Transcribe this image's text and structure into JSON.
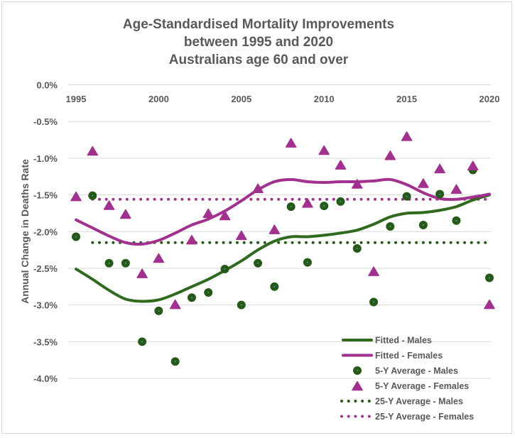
{
  "chart_data": {
    "type": "line",
    "title": [
      "Age-Standardised Mortality Improvements",
      "between 1995 and 2020",
      "Australians age 60 and over"
    ],
    "ylabel": "Annual Change in Deaths Rate",
    "xlabel": "",
    "xlim": [
      1995,
      2020
    ],
    "ylim": [
      -4.0,
      0.0
    ],
    "x_ticks": [
      "1995",
      "2000",
      "2005",
      "2010",
      "2015",
      "2020"
    ],
    "y_ticks": [
      "0.0%",
      "-0.5%",
      "-1.0%",
      "-1.5%",
      "-2.0%",
      "-2.5%",
      "-3.0%",
      "-3.5%",
      "-4.0%"
    ],
    "grid": true,
    "legend_position": "bottom-right",
    "x": [
      1995,
      1996,
      1997,
      1998,
      1999,
      2000,
      2001,
      2002,
      2003,
      2004,
      2005,
      2006,
      2007,
      2008,
      2009,
      2010,
      2011,
      2012,
      2013,
      2014,
      2015,
      2016,
      2017,
      2018,
      2019,
      2020
    ],
    "series": [
      {
        "name": "Fitted - Males",
        "style": "line",
        "color": "#2f6a1e",
        "values": [
          -2.51,
          -2.65,
          -2.8,
          -2.92,
          -2.95,
          -2.93,
          -2.85,
          -2.75,
          -2.65,
          -2.53,
          -2.4,
          -2.25,
          -2.13,
          -2.07,
          -2.07,
          -2.05,
          -2.02,
          -1.98,
          -1.9,
          -1.8,
          -1.75,
          -1.74,
          -1.71,
          -1.66,
          -1.57,
          -1.5
        ]
      },
      {
        "name": "Fitted - Females",
        "style": "line",
        "color": "#a2308f",
        "values": [
          -1.84,
          -1.95,
          -2.06,
          -2.15,
          -2.17,
          -2.12,
          -2.02,
          -1.91,
          -1.83,
          -1.72,
          -1.58,
          -1.43,
          -1.32,
          -1.29,
          -1.32,
          -1.33,
          -1.32,
          -1.32,
          -1.31,
          -1.29,
          -1.36,
          -1.47,
          -1.55,
          -1.56,
          -1.53,
          -1.49
        ]
      },
      {
        "name": "5-Y Average - Males",
        "style": "circle",
        "color": "#255a17",
        "values": [
          -2.07,
          -1.51,
          -2.43,
          -2.43,
          -3.5,
          -3.08,
          -3.77,
          -2.9,
          -2.83,
          -2.51,
          -3.0,
          -2.43,
          -2.75,
          -1.66,
          -2.42,
          -1.65,
          -1.59,
          -2.23,
          -2.96,
          -1.93,
          -1.52,
          -1.91,
          -1.49,
          -1.85,
          -1.16,
          -2.63
        ]
      },
      {
        "name": "5-Y Average - Females",
        "style": "triangle",
        "color": "#a2308f",
        "values": [
          -1.52,
          -0.9,
          -1.64,
          -1.76,
          -2.57,
          -2.36,
          -2.99,
          -2.11,
          -1.75,
          -1.78,
          -2.05,
          -1.41,
          -1.97,
          -0.79,
          -1.61,
          -0.89,
          -1.09,
          -1.35,
          -2.54,
          -0.96,
          -0.7,
          -1.34,
          -1.14,
          -1.42,
          -1.1,
          -2.99
        ]
      },
      {
        "name": "25-Y Average - Males",
        "style": "dotted",
        "color": "#255a17",
        "x_range": [
          1996,
          2020
        ],
        "value": -2.15
      },
      {
        "name": "25-Y Average - Females",
        "style": "dotted",
        "color": "#a2308f",
        "x_range": [
          1996,
          2020
        ],
        "value": -1.56
      }
    ]
  }
}
